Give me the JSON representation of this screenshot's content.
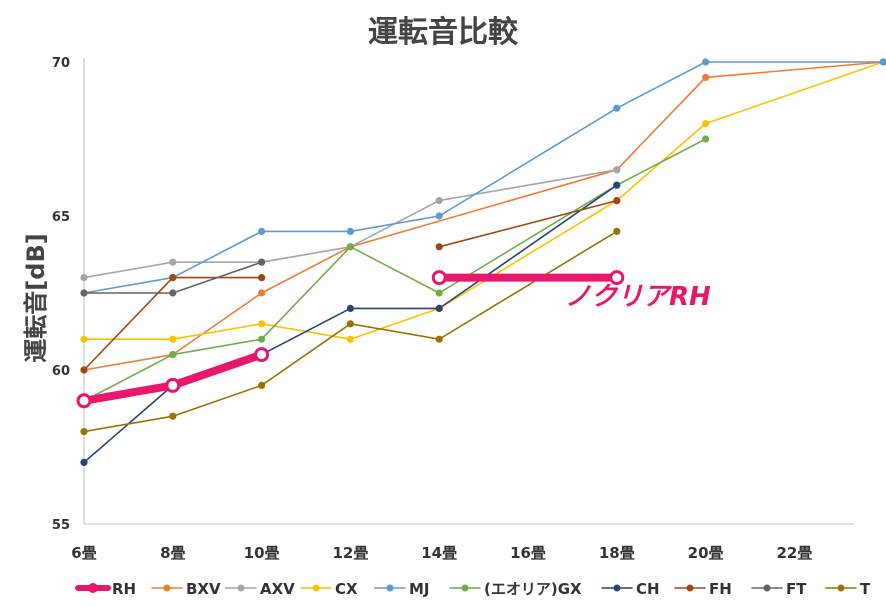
{
  "chart_data": {
    "type": "line",
    "title": "運転音比較",
    "ylabel": "運転音[dB]",
    "xlabel": "",
    "categories": [
      "6畳",
      "8畳",
      "10畳",
      "12畳",
      "14畳",
      "16畳",
      "18畳",
      "20畳",
      "22畳"
    ],
    "yticks": [
      "55",
      "60",
      "65",
      "70"
    ],
    "ylim": [
      55,
      70
    ],
    "grid": false,
    "legend_position": "bottom",
    "annotation": "ノクリアRH",
    "series": [
      {
        "name": "RH",
        "color": "#e8176b",
        "emphasis": true,
        "points": [
          [
            0,
            59
          ],
          [
            1,
            59.5
          ],
          [
            2,
            60.5
          ]
        ]
      },
      {
        "name": "BXV",
        "color": "#ed7d31",
        "points": [
          [
            0,
            60
          ],
          [
            1,
            60.5
          ],
          [
            2,
            62.5
          ],
          [
            3,
            64
          ],
          [
            6,
            66.5
          ],
          [
            7,
            69.5
          ],
          [
            9,
            70
          ]
        ]
      },
      {
        "name": "AXV",
        "color": "#a5a5a5",
        "points": [
          [
            0,
            63
          ],
          [
            1,
            63.5
          ],
          [
            2,
            63.5
          ],
          [
            3,
            64
          ],
          [
            4,
            65.5
          ],
          [
            6,
            66.5
          ]
        ]
      },
      {
        "name": "CX",
        "color": "#ffc000",
        "points": [
          [
            0,
            61
          ],
          [
            1,
            61
          ],
          [
            2,
            61.5
          ],
          [
            3,
            61
          ],
          [
            4,
            62
          ],
          [
            6,
            65.5
          ],
          [
            7,
            68
          ],
          [
            9,
            70
          ]
        ]
      },
      {
        "name": "MJ",
        "color": "#5b9bd5",
        "points": [
          [
            0,
            62.5
          ],
          [
            1,
            63
          ],
          [
            2,
            64.5
          ],
          [
            3,
            64.5
          ],
          [
            4,
            65
          ],
          [
            6,
            68.5
          ],
          [
            7,
            70
          ],
          [
            9,
            70
          ]
        ]
      },
      {
        "name": "(エオリア)GX",
        "color": "#70ad47",
        "points": [
          [
            0,
            59
          ],
          [
            1,
            60.5
          ],
          [
            2,
            61
          ],
          [
            3,
            64
          ],
          [
            4,
            62.5
          ],
          [
            6,
            66
          ],
          [
            7,
            67.5
          ]
        ]
      },
      {
        "name": "CH",
        "color": "#264478",
        "points": [
          [
            0,
            57
          ],
          [
            1,
            59.5
          ],
          [
            2,
            60.5
          ],
          [
            3,
            62
          ],
          [
            4,
            62
          ],
          [
            6,
            66
          ]
        ]
      },
      {
        "name": "FH",
        "color": "#9e480e",
        "points": [
          [
            0,
            60
          ],
          [
            1,
            63
          ],
          [
            2,
            63
          ]
        ],
        "extra_segments": [
          [
            [
              4,
              64
            ],
            [
              6,
              65.5
            ]
          ]
        ]
      },
      {
        "name": "FT",
        "color": "#636363",
        "points": [
          [
            0,
            62.5
          ],
          [
            1,
            62.5
          ],
          [
            2,
            63.5
          ]
        ]
      },
      {
        "name": "T",
        "color": "#997300",
        "points": [
          [
            0,
            58
          ],
          [
            1,
            58.5
          ],
          [
            2,
            59.5
          ],
          [
            3,
            61.5
          ],
          [
            4,
            61
          ],
          [
            6,
            64.5
          ]
        ]
      },
      {
        "name": "ノクリアRH",
        "color": "#e8176b",
        "emphasis": true,
        "in_legend": false,
        "points": [
          [
            4,
            63
          ],
          [
            6,
            63
          ]
        ]
      }
    ]
  }
}
